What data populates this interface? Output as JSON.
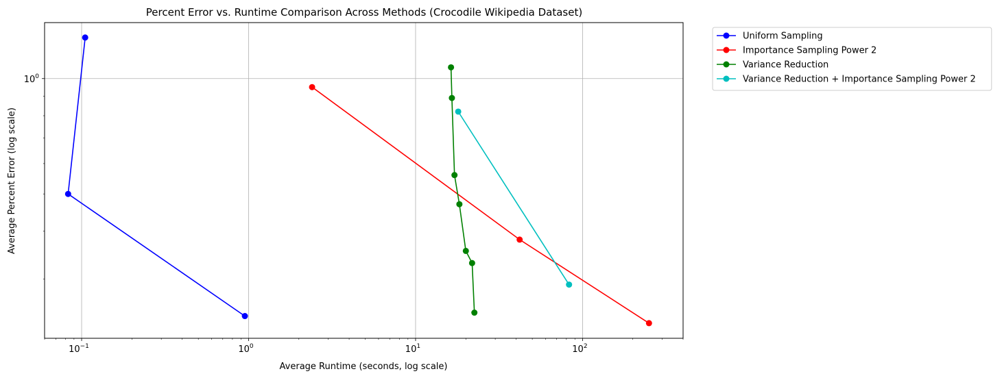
{
  "chart_data": {
    "type": "line",
    "title": "Percent Error vs. Runtime Comparison Across Methods (Crocodile Wikipedia Dataset)",
    "xlabel": "Average Runtime (seconds, log scale)",
    "ylabel": "Average Percent Error (log scale)",
    "xscale": "log",
    "yscale": "log",
    "xlim": [
      0.06,
      400
    ],
    "ylim": [
      0.21,
      1.4
    ],
    "xticks": [
      {
        "value": 0.1,
        "base": "10",
        "exp": "−1"
      },
      {
        "value": 1,
        "base": "10",
        "exp": "0"
      },
      {
        "value": 10,
        "base": "10",
        "exp": "1"
      },
      {
        "value": 100,
        "base": "10",
        "exp": "2"
      }
    ],
    "yticks": [
      {
        "value": 1,
        "base": "10",
        "exp": "0"
      }
    ],
    "grid": true,
    "legend_position": "outside-top-right",
    "series": [
      {
        "name": "Uniform Sampling",
        "color": "#0000ff",
        "x": [
          0.105,
          0.083,
          0.95
        ],
        "y": [
          1.28,
          0.5,
          0.24
        ]
      },
      {
        "name": "Importance Sampling Power 2",
        "color": "#ff0000",
        "x": [
          2.4,
          42,
          250
        ],
        "y": [
          0.95,
          0.38,
          0.23
        ]
      },
      {
        "name": "Variance Reduction",
        "color": "#008000",
        "x": [
          16.3,
          16.5,
          17.1,
          18.3,
          20,
          21.8,
          22.5
        ],
        "y": [
          1.07,
          0.89,
          0.56,
          0.47,
          0.355,
          0.33,
          0.245
        ]
      },
      {
        "name": "Variance Reduction + Importance Sampling Power 2",
        "color": "#00bfbf",
        "x": [
          18,
          83
        ],
        "y": [
          0.82,
          0.29
        ]
      }
    ]
  }
}
